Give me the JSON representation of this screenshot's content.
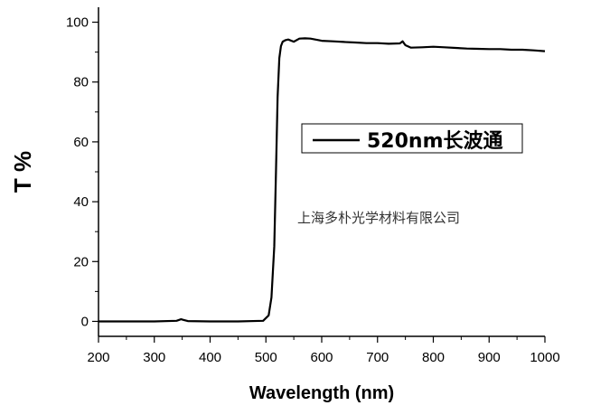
{
  "chart_data": {
    "type": "line",
    "xlabel": "Wavelength (nm)",
    "ylabel": "T %",
    "xlim": [
      200,
      1000
    ],
    "ylim": [
      -5,
      105
    ],
    "xticks": [
      200,
      300,
      400,
      500,
      600,
      700,
      800,
      900,
      1000
    ],
    "yticks": [
      0,
      20,
      40,
      60,
      80,
      100
    ],
    "legend": {
      "placement": "upper-right",
      "entries": [
        "520nm长波通"
      ]
    },
    "grid": false,
    "series": [
      {
        "name": "520nm长波通",
        "color": "#000000",
        "x": [
          200,
          300,
          340,
          348,
          352,
          360,
          400,
          450,
          495,
          505,
          510,
          515,
          518,
          521,
          524,
          527,
          530,
          535,
          540,
          550,
          560,
          570,
          580,
          600,
          620,
          640,
          660,
          680,
          700,
          720,
          740,
          745,
          750,
          760,
          780,
          800,
          820,
          840,
          860,
          880,
          900,
          920,
          940,
          960,
          980,
          1000
        ],
        "values": [
          0,
          0,
          0.2,
          0.7,
          0.5,
          0.1,
          0,
          0,
          0.2,
          2,
          8,
          25,
          50,
          75,
          88,
          92,
          93.5,
          94,
          94.2,
          93.5,
          94.5,
          94.6,
          94.5,
          93.8,
          93.6,
          93.4,
          93.2,
          93,
          93,
          92.8,
          92.9,
          93.6,
          92.3,
          91.5,
          91.6,
          91.8,
          91.6,
          91.4,
          91.2,
          91.1,
          91,
          91,
          90.8,
          90.8,
          90.6,
          90.3
        ]
      }
    ],
    "annotations": [
      "上海多朴光学材料有限公司"
    ]
  }
}
